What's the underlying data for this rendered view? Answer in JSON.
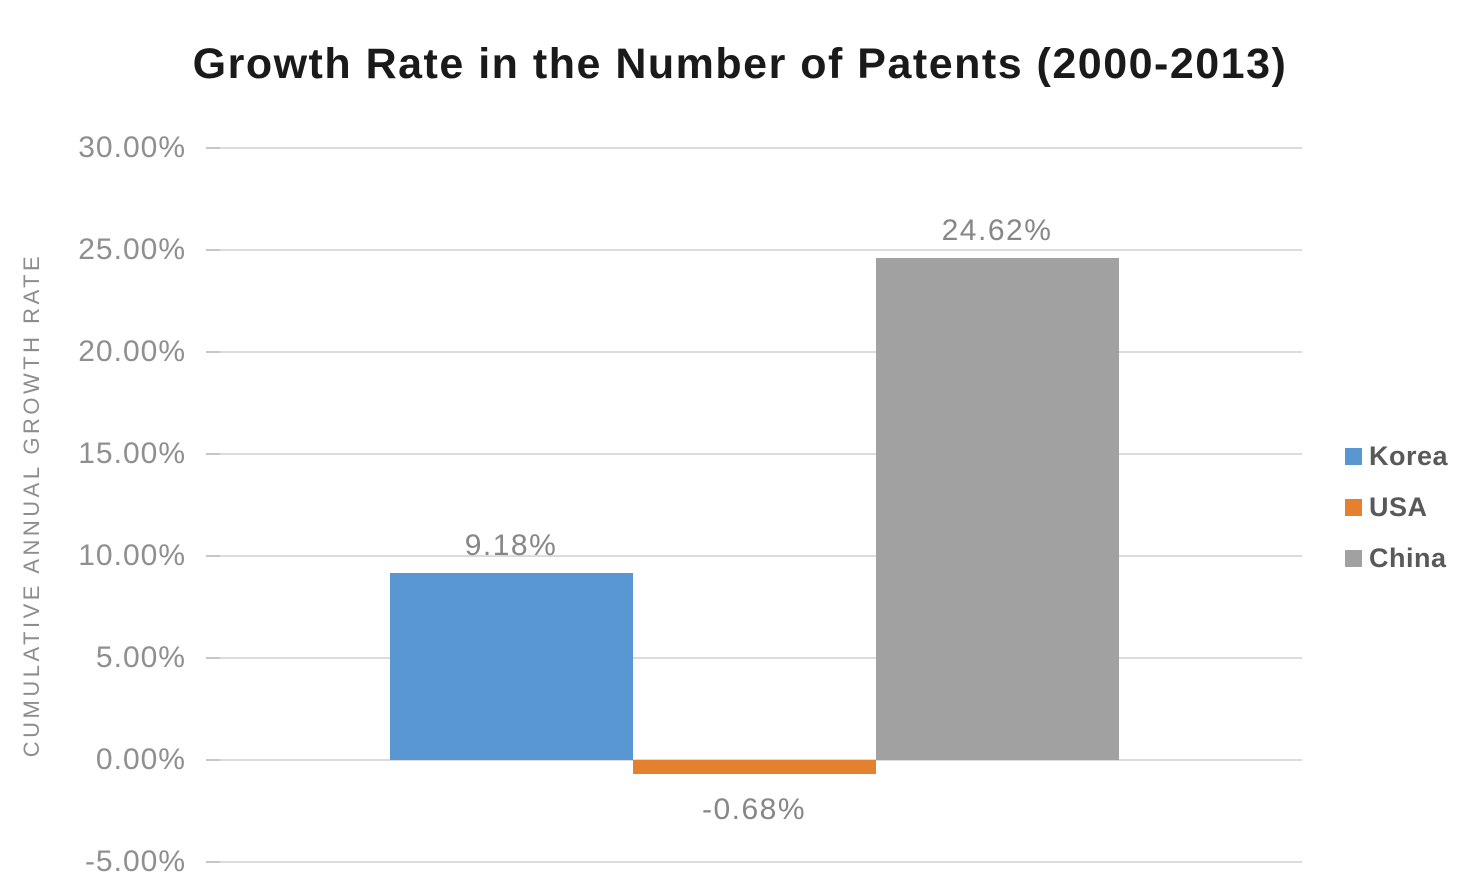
{
  "chart_data": {
    "type": "bar",
    "title": "Growth Rate in the Number of Patents (2000-2013)",
    "xlabel": "",
    "ylabel": "CUMULATIVE ANNUAL GROWTH RATE",
    "ylim": [
      -5,
      30
    ],
    "ytick_step": 5,
    "yticks": [
      "30.00%",
      "25.00%",
      "20.00%",
      "15.00%",
      "10.00%",
      "5.00%",
      "0.00%",
      "-5.00%"
    ],
    "grid": true,
    "legend_position": "right",
    "categories": [
      "Korea",
      "USA",
      "China"
    ],
    "series": [
      {
        "name": "Korea",
        "value": 9.18,
        "label": "9.18%",
        "color": "#5897D1"
      },
      {
        "name": "USA",
        "value": -0.68,
        "label": "-0.68%",
        "color": "#E5802F"
      },
      {
        "name": "China",
        "value": 24.62,
        "label": "24.62%",
        "color": "#A1A1A1"
      }
    ],
    "colors": {
      "title_text": "#1a1a1a",
      "axis_text": "#8f8f8f",
      "gridline": "#dcdcdc",
      "legend_text": "#595959"
    }
  }
}
